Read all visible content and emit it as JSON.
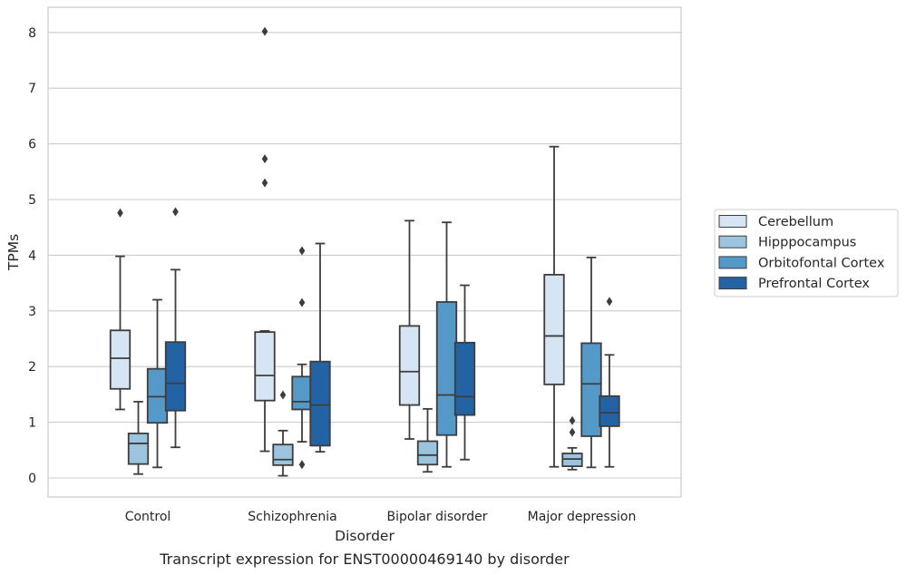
{
  "chart_data": {
    "type": "box",
    "title": "",
    "caption": "Transcript expression for ENST00000469140 by disorder",
    "xlabel": "Disorder",
    "ylabel": "TPMs",
    "ylim": [
      -0.35,
      8.45
    ],
    "yticks": [
      0,
      1,
      2,
      3,
      4,
      5,
      6,
      7,
      8
    ],
    "grid": "horizontal",
    "legend_position": "right",
    "categories": [
      "Control",
      "Schizophrenia",
      "Bipolar disorder",
      "Major depression"
    ],
    "series": [
      {
        "name": "Cerebellum",
        "color": "#d5e5f3",
        "boxes": [
          {
            "whislo": 1.23,
            "q1": 1.6,
            "med": 2.15,
            "q3": 2.65,
            "whishi": 3.98,
            "fliers": [
              4.76
            ]
          },
          {
            "whislo": 0.48,
            "q1": 1.39,
            "med": 1.84,
            "q3": 2.62,
            "whishi": 2.64,
            "fliers": [
              5.3,
              5.73,
              8.02
            ]
          },
          {
            "whislo": 0.7,
            "q1": 1.31,
            "med": 1.91,
            "q3": 2.73,
            "whishi": 4.62,
            "fliers": []
          },
          {
            "whislo": 0.2,
            "q1": 1.68,
            "med": 2.55,
            "q3": 3.65,
            "whishi": 5.95,
            "fliers": []
          }
        ]
      },
      {
        "name": "Hipppocampus",
        "color": "#9cc4de",
        "boxes": [
          {
            "whislo": 0.07,
            "q1": 0.25,
            "med": 0.62,
            "q3": 0.8,
            "whishi": 1.37,
            "fliers": []
          },
          {
            "whislo": 0.04,
            "q1": 0.23,
            "med": 0.33,
            "q3": 0.6,
            "whishi": 0.85,
            "fliers": [
              1.49
            ]
          },
          {
            "whislo": 0.11,
            "q1": 0.24,
            "med": 0.41,
            "q3": 0.66,
            "whishi": 1.24,
            "fliers": []
          },
          {
            "whislo": 0.15,
            "q1": 0.21,
            "med": 0.34,
            "q3": 0.44,
            "whishi": 0.54,
            "fliers": [
              0.82,
              1.03
            ]
          }
        ]
      },
      {
        "name": "Orbitofontal Cortex",
        "color": "#5599c8",
        "boxes": [
          {
            "whislo": 0.19,
            "q1": 0.99,
            "med": 1.46,
            "q3": 1.96,
            "whishi": 3.2,
            "fliers": []
          },
          {
            "whislo": 0.65,
            "q1": 1.23,
            "med": 1.37,
            "q3": 1.82,
            "whishi": 2.04,
            "fliers": [
              0.24,
              3.15,
              4.08
            ]
          },
          {
            "whislo": 0.2,
            "q1": 0.77,
            "med": 1.49,
            "q3": 3.16,
            "whishi": 4.59,
            "fliers": []
          },
          {
            "whislo": 0.19,
            "q1": 0.75,
            "med": 1.69,
            "q3": 2.42,
            "whishi": 3.96,
            "fliers": []
          }
        ]
      },
      {
        "name": "Prefrontal Cortex",
        "color": "#2363a3",
        "boxes": [
          {
            "whislo": 0.55,
            "q1": 1.21,
            "med": 1.7,
            "q3": 2.44,
            "whishi": 3.74,
            "fliers": [
              4.78
            ]
          },
          {
            "whislo": 0.47,
            "q1": 0.58,
            "med": 1.31,
            "q3": 2.09,
            "whishi": 4.21,
            "fliers": []
          },
          {
            "whislo": 0.33,
            "q1": 1.13,
            "med": 1.46,
            "q3": 2.43,
            "whishi": 3.46,
            "fliers": []
          },
          {
            "whislo": 0.2,
            "q1": 0.93,
            "med": 1.17,
            "q3": 1.47,
            "whishi": 2.21,
            "fliers": [
              3.17
            ]
          }
        ]
      }
    ]
  }
}
